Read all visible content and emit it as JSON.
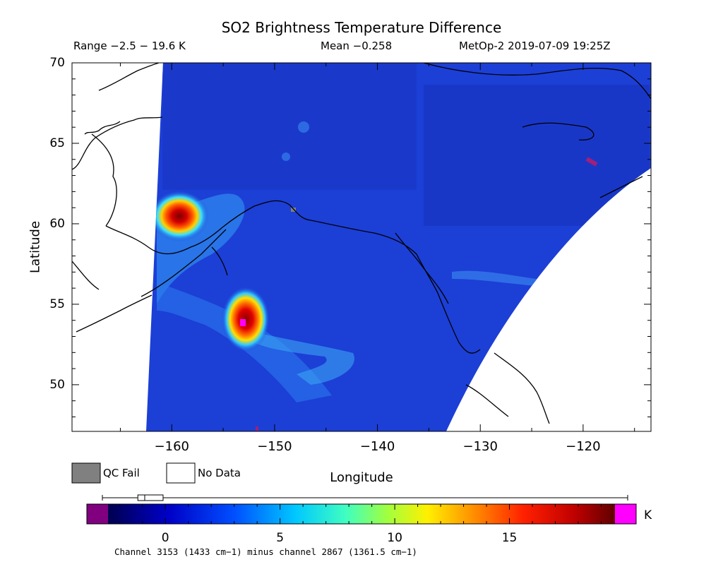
{
  "title": "SO2 Brightness Temperature Difference",
  "range_text": "Range −2.5 − 19.6 K",
  "mean_text": "Mean −0.258",
  "sat_text": "MetOp-2 2019-07-09 19:25Z",
  "xlabel": "Longitude",
  "ylabel": "Latitude",
  "x_ticks": [
    "−160",
    "−150",
    "−140",
    "−130",
    "−120"
  ],
  "x_tick_values": [
    -160,
    -150,
    -140,
    -130,
    -120
  ],
  "y_ticks": [
    "50",
    "55",
    "60",
    "65",
    "70"
  ],
  "y_tick_values": [
    50,
    55,
    60,
    65,
    70
  ],
  "x_range": [
    -169.7,
    -113.4
  ],
  "y_range": [
    47.1,
    70.0
  ],
  "legend": {
    "qc_fail": "QC Fail",
    "no_data": "No Data",
    "qc_fail_color": "#808080",
    "no_data_color": "#ffffff"
  },
  "colorbar": {
    "unit": "K",
    "ticks": [
      "0",
      "5",
      "10",
      "15"
    ],
    "tick_values": [
      0,
      5,
      10,
      15
    ],
    "range": [
      -2.5,
      19.6
    ],
    "low_color": "#800080",
    "high_color": "#ff00ff",
    "boxplot": {
      "min": -2.5,
      "q1": -1.2,
      "median": -0.9,
      "q3": -0.1,
      "max": 19.6
    }
  },
  "colors": {
    "field": "#1c3fd6",
    "deep_blue": "#0a1ea0",
    "coast": "#000000"
  },
  "footnote": "Channel 3153 (1433 cm−1) minus channel 2867 (1361.5 cm−1)",
  "plumes": [
    {
      "lon": -159.5,
      "lat": 60.4,
      "peak_k": 19.6
    },
    {
      "lon": -152.0,
      "lat": 54.0,
      "peak_k": 19.6
    }
  ]
}
